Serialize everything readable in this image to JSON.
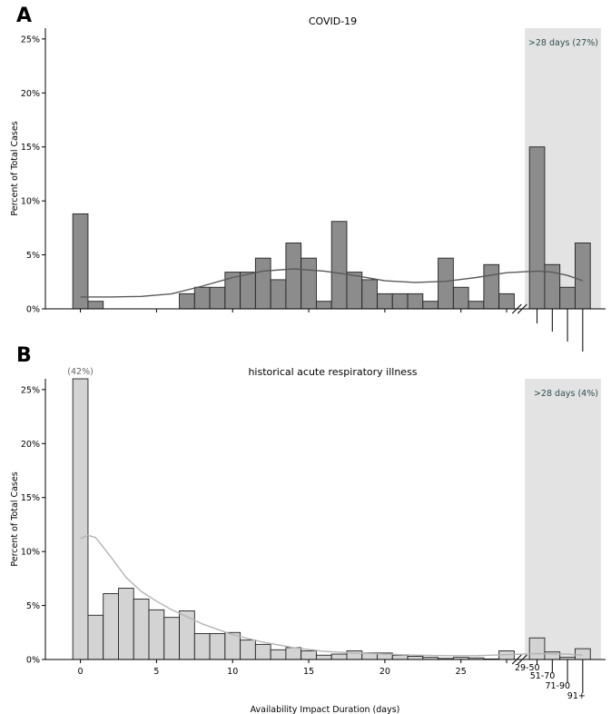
{
  "figure": {
    "xlabel": "Availability Impact Duration (days)",
    "bin_labels": [
      "29-50",
      "51-70",
      "71-90",
      "91+"
    ]
  },
  "chart_data": [
    {
      "type": "bar",
      "panel_letter": "A",
      "title": "COVID-19",
      "ylabel": "Percent of Total Cases",
      "yticks": [
        "0%",
        "5%",
        "10%",
        "15%",
        "20%",
        "25%"
      ],
      "ylim": [
        0,
        26
      ],
      "xlim": [
        -2.3,
        34.5
      ],
      "shade_label": ">28 days (27%)",
      "shade_range": [
        29.2,
        34.2
      ],
      "bar_color": "#8c8c8c",
      "x": [
        0,
        1,
        2,
        3,
        4,
        5,
        6,
        7,
        8,
        9,
        10,
        11,
        12,
        13,
        14,
        15,
        16,
        17,
        18,
        19,
        20,
        21,
        22,
        23,
        24,
        25,
        26,
        27,
        28
      ],
      "values": [
        8.8,
        0.7,
        0,
        0,
        0,
        0,
        0,
        1.4,
        2.0,
        2.0,
        3.4,
        3.4,
        4.7,
        2.7,
        6.1,
        4.7,
        0.7,
        8.1,
        3.4,
        2.7,
        1.4,
        1.4,
        1.4,
        0.7,
        4.7,
        2.0,
        0.7,
        4.1,
        1.4
      ],
      "extra_bins": [
        15.0,
        4.1,
        2.0,
        6.1
      ],
      "density_x": [
        0,
        2,
        4,
        6,
        8,
        10,
        12,
        14,
        16,
        18,
        20,
        22,
        24,
        26,
        28,
        30,
        31,
        32,
        33
      ],
      "density_y": [
        1.1,
        1.1,
        1.15,
        1.4,
        2.1,
        2.9,
        3.5,
        3.7,
        3.5,
        3.1,
        2.6,
        2.45,
        2.55,
        2.9,
        3.35,
        3.5,
        3.4,
        3.1,
        2.6
      ],
      "density_color": "#5a5a5a"
    },
    {
      "type": "bar",
      "panel_letter": "B",
      "title": "historical acute respiratory illness",
      "ylabel": "Percent of Total Cases",
      "yticks": [
        "0%",
        "5%",
        "10%",
        "15%",
        "20%",
        "25%"
      ],
      "xticks": [
        "0",
        "5",
        "10",
        "15",
        "20",
        "25"
      ],
      "ylim": [
        0,
        26
      ],
      "xlim": [
        -2.3,
        34.5
      ],
      "shade_label": ">28 days (4%)",
      "shade_range": [
        29.2,
        34.2
      ],
      "bar_color": "#d3d3d3",
      "overflow_label": "(42%)",
      "x": [
        0,
        1,
        2,
        3,
        4,
        5,
        6,
        7,
        8,
        9,
        10,
        11,
        12,
        13,
        14,
        15,
        16,
        17,
        18,
        19,
        20,
        21,
        22,
        23,
        24,
        25,
        26,
        27,
        28
      ],
      "values": [
        42,
        4.1,
        6.1,
        6.6,
        5.6,
        4.6,
        3.9,
        4.5,
        2.4,
        2.4,
        2.5,
        1.8,
        1.4,
        0.9,
        1.1,
        0.8,
        0.4,
        0.5,
        0.8,
        0.6,
        0.6,
        0.4,
        0.3,
        0.2,
        0.1,
        0.2,
        0.15,
        0.05,
        0.8
      ],
      "extra_bins": [
        2.0,
        0.7,
        0.2,
        1.0
      ],
      "density_x": [
        0,
        0.5,
        1,
        2,
        3,
        4,
        5,
        6,
        8,
        10,
        12,
        14,
        16,
        18,
        20,
        22,
        24,
        26,
        28,
        30,
        32,
        33
      ],
      "density_y": [
        11.2,
        11.5,
        11.3,
        9.5,
        7.6,
        6.3,
        5.4,
        4.6,
        3.3,
        2.3,
        1.6,
        1.1,
        0.75,
        0.6,
        0.5,
        0.4,
        0.35,
        0.35,
        0.45,
        0.55,
        0.5,
        0.4
      ],
      "density_color": "#b4b4b4"
    }
  ]
}
